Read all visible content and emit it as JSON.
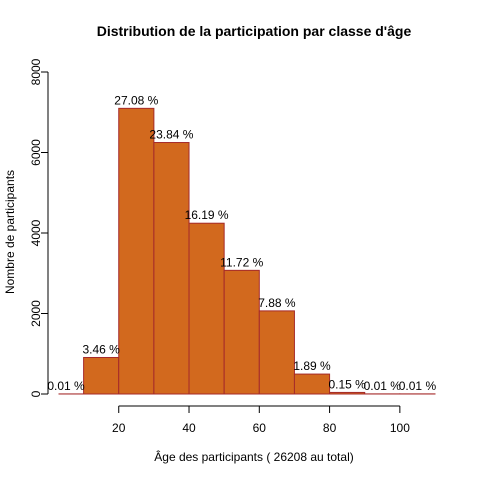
{
  "chart_data": {
    "type": "bar",
    "title": "Distribution de la participation par classe d'âge",
    "xlabel": "Âge des participants ( 26208  au total)",
    "ylabel": "Nombre de participants",
    "bin_edges": [
      0,
      10,
      20,
      30,
      40,
      50,
      60,
      70,
      80,
      90,
      100,
      110
    ],
    "values": [
      2,
      907,
      7097,
      6248,
      4243,
      3072,
      2065,
      495,
      39,
      3,
      3
    ],
    "labels": [
      "0.01 %",
      "3.46 %",
      "27.08 %",
      "23.84 %",
      "16.19 %",
      "11.72 %",
      "7.88 %",
      "1.89 %",
      "0.15 %",
      "0.01 %",
      "0.01 %"
    ],
    "xlim": [
      3,
      110
    ],
    "ylim": [
      0,
      8000
    ],
    "x_ticks": [
      "20",
      "40",
      "60",
      "80",
      "100"
    ],
    "x_tick_values": [
      20,
      40,
      60,
      80,
      100
    ],
    "y_ticks": [
      "0",
      "2000",
      "4000",
      "6000",
      "8000"
    ],
    "y_tick_values": [
      0,
      2000,
      4000,
      6000,
      8000
    ],
    "bar_fill": "#d2691e",
    "bar_edge": "#a52a2a",
    "grid": false,
    "legend": "none"
  }
}
